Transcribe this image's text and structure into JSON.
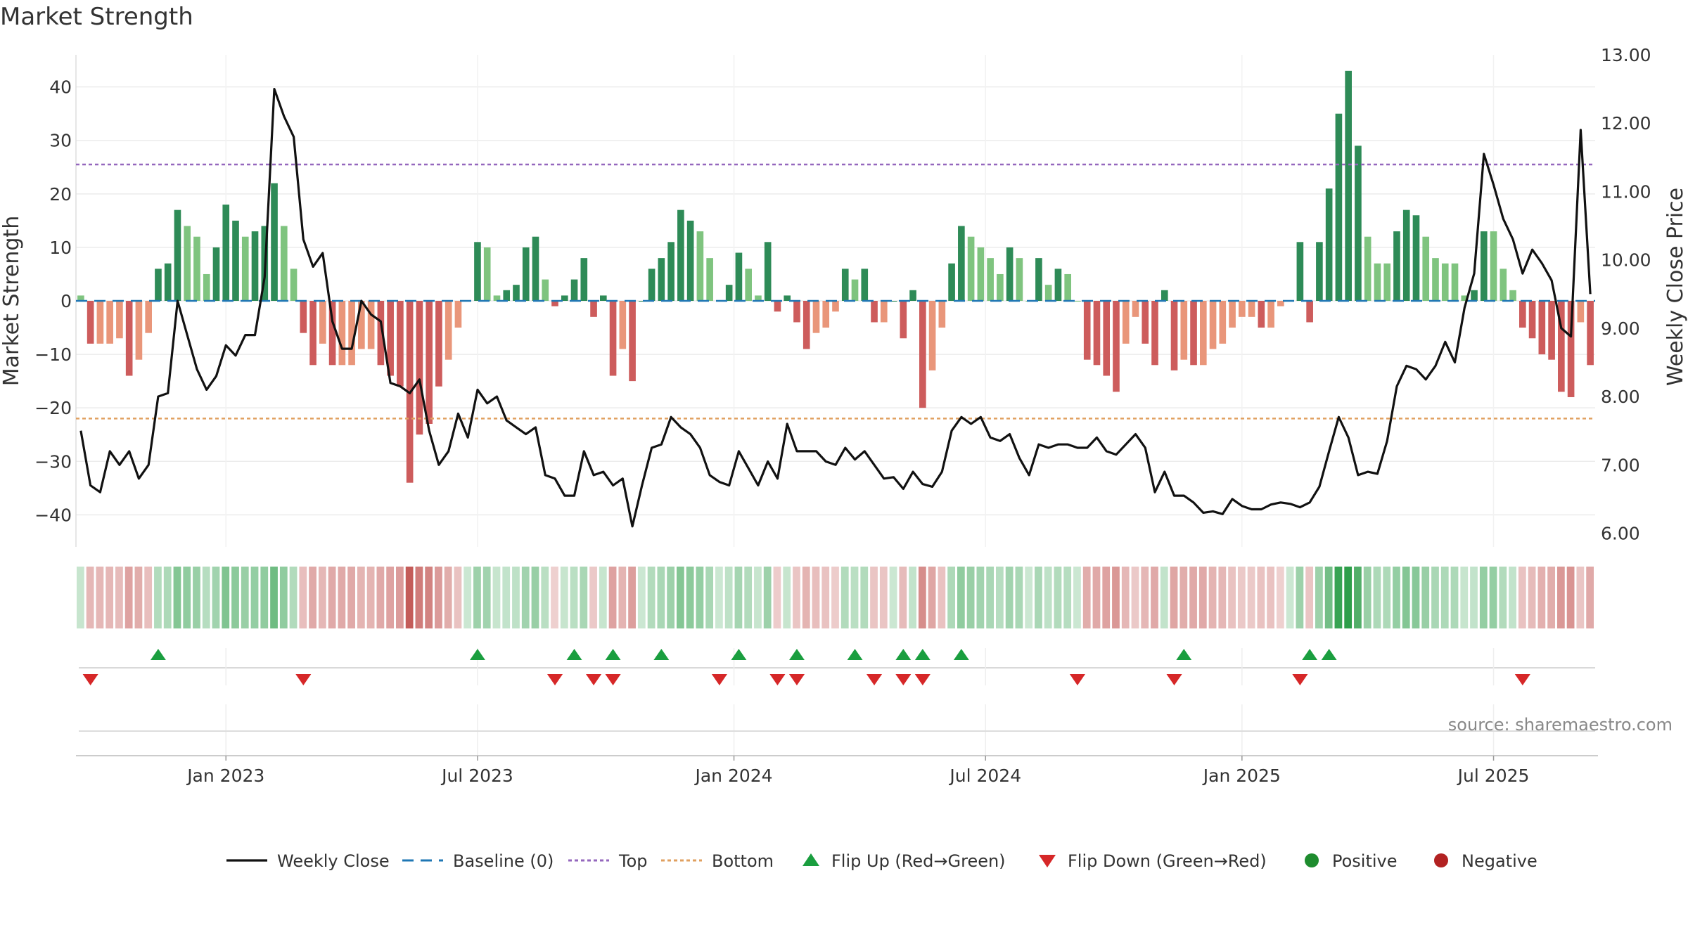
{
  "title": "Market Strength",
  "source": "source: sharemaestro.com",
  "colors": {
    "strong_green": "#2e8b57",
    "light_green": "#7fc47f",
    "strong_red": "#cd5c5c",
    "light_red": "#e9967a",
    "close_line": "#111111",
    "baseline": "#1f77b4",
    "top_line": "#9467bd",
    "bottom_line": "#e0a060",
    "flip_up": "#1a9e3f",
    "flip_down": "#d62728",
    "positive": "#1e8c2e",
    "negative": "#b22222"
  },
  "chart_data": {
    "type": "bar",
    "title": "Market Strength",
    "ylabel": "Market Strength",
    "y2label": "Weekly Close Price",
    "ylim": [
      -46,
      46
    ],
    "y2lim": [
      5.8,
      13.0
    ],
    "yticks": [
      40,
      30,
      20,
      10,
      0,
      -10,
      -20,
      -30,
      -40
    ],
    "y2ticks": [
      "13.00",
      "12.00",
      "11.00",
      "10.00",
      "9.00",
      "8.00",
      "7.00",
      "6.00"
    ],
    "xticks": [
      {
        "label": "Jan 2023",
        "week": 15
      },
      {
        "label": "Jul 2023",
        "week": 41
      },
      {
        "label": "Jan 2024",
        "week": 67.5
      },
      {
        "label": "Jul 2024",
        "week": 93.5
      },
      {
        "label": "Jan 2025",
        "week": 120
      },
      {
        "label": "Jul 2025",
        "week": 146
      }
    ],
    "top": 25.5,
    "bottom": -22,
    "strength": [
      1,
      -8,
      -8,
      -8,
      -7,
      -14,
      -11,
      -6,
      6,
      7,
      17,
      14,
      12,
      5,
      10,
      18,
      15,
      12,
      13,
      14,
      22,
      14,
      6,
      -6,
      -12,
      -8,
      -12,
      -12,
      -12,
      -9,
      -9,
      -12,
      -14,
      -16,
      -34,
      -25,
      -23,
      -16,
      -11,
      -5,
      0,
      11,
      10,
      1,
      2,
      3,
      10,
      12,
      4,
      -1,
      1,
      4,
      8,
      -3,
      1,
      -14,
      -9,
      -15,
      0,
      6,
      8,
      11,
      17,
      15,
      13,
      8,
      0,
      3,
      9,
      6,
      1,
      11,
      -2,
      1,
      -4,
      -9,
      -6,
      -5,
      -2,
      6,
      4,
      6,
      -4,
      -4,
      0,
      -7,
      2,
      -20,
      -13,
      -5,
      7,
      14,
      12,
      10,
      8,
      5,
      10,
      8,
      0,
      8,
      3,
      6,
      5,
      0,
      -11,
      -12,
      -14,
      -17,
      -8,
      -3,
      -8,
      -12,
      2,
      -13,
      -11,
      -12,
      -12,
      -9,
      -8,
      -5,
      -3,
      -3,
      -5,
      -5,
      -1,
      0,
      11,
      -4,
      11,
      21,
      35,
      43,
      29,
      12,
      7,
      7,
      13,
      17,
      16,
      12,
      8,
      7,
      7,
      1,
      2,
      13,
      13,
      6,
      2,
      -5,
      -7,
      -10,
      -11,
      -17,
      -18,
      -4,
      -12
    ],
    "close": [
      7.5,
      6.7,
      6.6,
      7.2,
      7.0,
      7.2,
      6.8,
      7.0,
      8.0,
      8.05,
      9.4,
      8.9,
      8.4,
      8.1,
      8.3,
      8.75,
      8.6,
      8.9,
      8.9,
      9.75,
      12.5,
      12.1,
      11.8,
      10.3,
      9.9,
      10.1,
      9.1,
      8.7,
      8.7,
      9.4,
      9.2,
      9.1,
      8.2,
      8.15,
      8.05,
      8.25,
      7.5,
      7.0,
      7.2,
      7.75,
      7.4,
      8.1,
      7.9,
      8.0,
      7.65,
      7.55,
      7.45,
      7.55,
      6.85,
      6.8,
      6.55,
      6.55,
      7.2,
      6.85,
      6.9,
      6.7,
      6.8,
      6.1,
      6.7,
      7.25,
      7.3,
      7.7,
      7.55,
      7.45,
      7.25,
      6.85,
      6.75,
      6.7,
      7.2,
      6.95,
      6.7,
      7.05,
      6.8,
      7.6,
      7.2,
      7.2,
      7.2,
      7.05,
      7.0,
      7.25,
      7.08,
      7.2,
      7.0,
      6.8,
      6.82,
      6.65,
      6.9,
      6.72,
      6.68,
      6.9,
      7.5,
      7.7,
      7.6,
      7.7,
      7.4,
      7.35,
      7.45,
      7.1,
      6.85,
      7.3,
      7.25,
      7.3,
      7.3,
      7.25,
      7.25,
      7.4,
      7.2,
      7.15,
      7.3,
      7.45,
      7.25,
      6.6,
      6.9,
      6.55,
      6.55,
      6.45,
      6.3,
      6.32,
      6.28,
      6.5,
      6.4,
      6.35,
      6.35,
      6.42,
      6.45,
      6.43,
      6.38,
      6.45,
      6.68,
      7.2,
      7.7,
      7.4,
      6.85,
      6.9,
      6.87,
      7.35,
      8.15,
      8.45,
      8.4,
      8.25,
      8.45,
      8.8,
      8.5,
      9.3,
      9.8,
      11.55,
      11.1,
      10.6,
      10.3,
      9.8,
      10.15,
      9.95,
      9.7,
      9.0,
      8.88,
      11.9,
      9.5
    ],
    "flip_up_weeks": [
      8,
      41,
      51,
      55,
      60,
      68,
      74,
      80,
      85,
      87,
      91,
      114,
      127,
      129
    ],
    "flip_down_weeks": [
      1,
      23,
      49,
      53,
      55,
      66,
      72,
      74,
      82,
      85,
      87,
      103,
      113,
      126,
      149
    ],
    "legend": [
      "Weekly Close",
      "Baseline (0)",
      "Top",
      "Bottom",
      "Flip Up (Red→Green)",
      "Flip Down (Green→Red)",
      "Positive",
      "Negative"
    ]
  }
}
